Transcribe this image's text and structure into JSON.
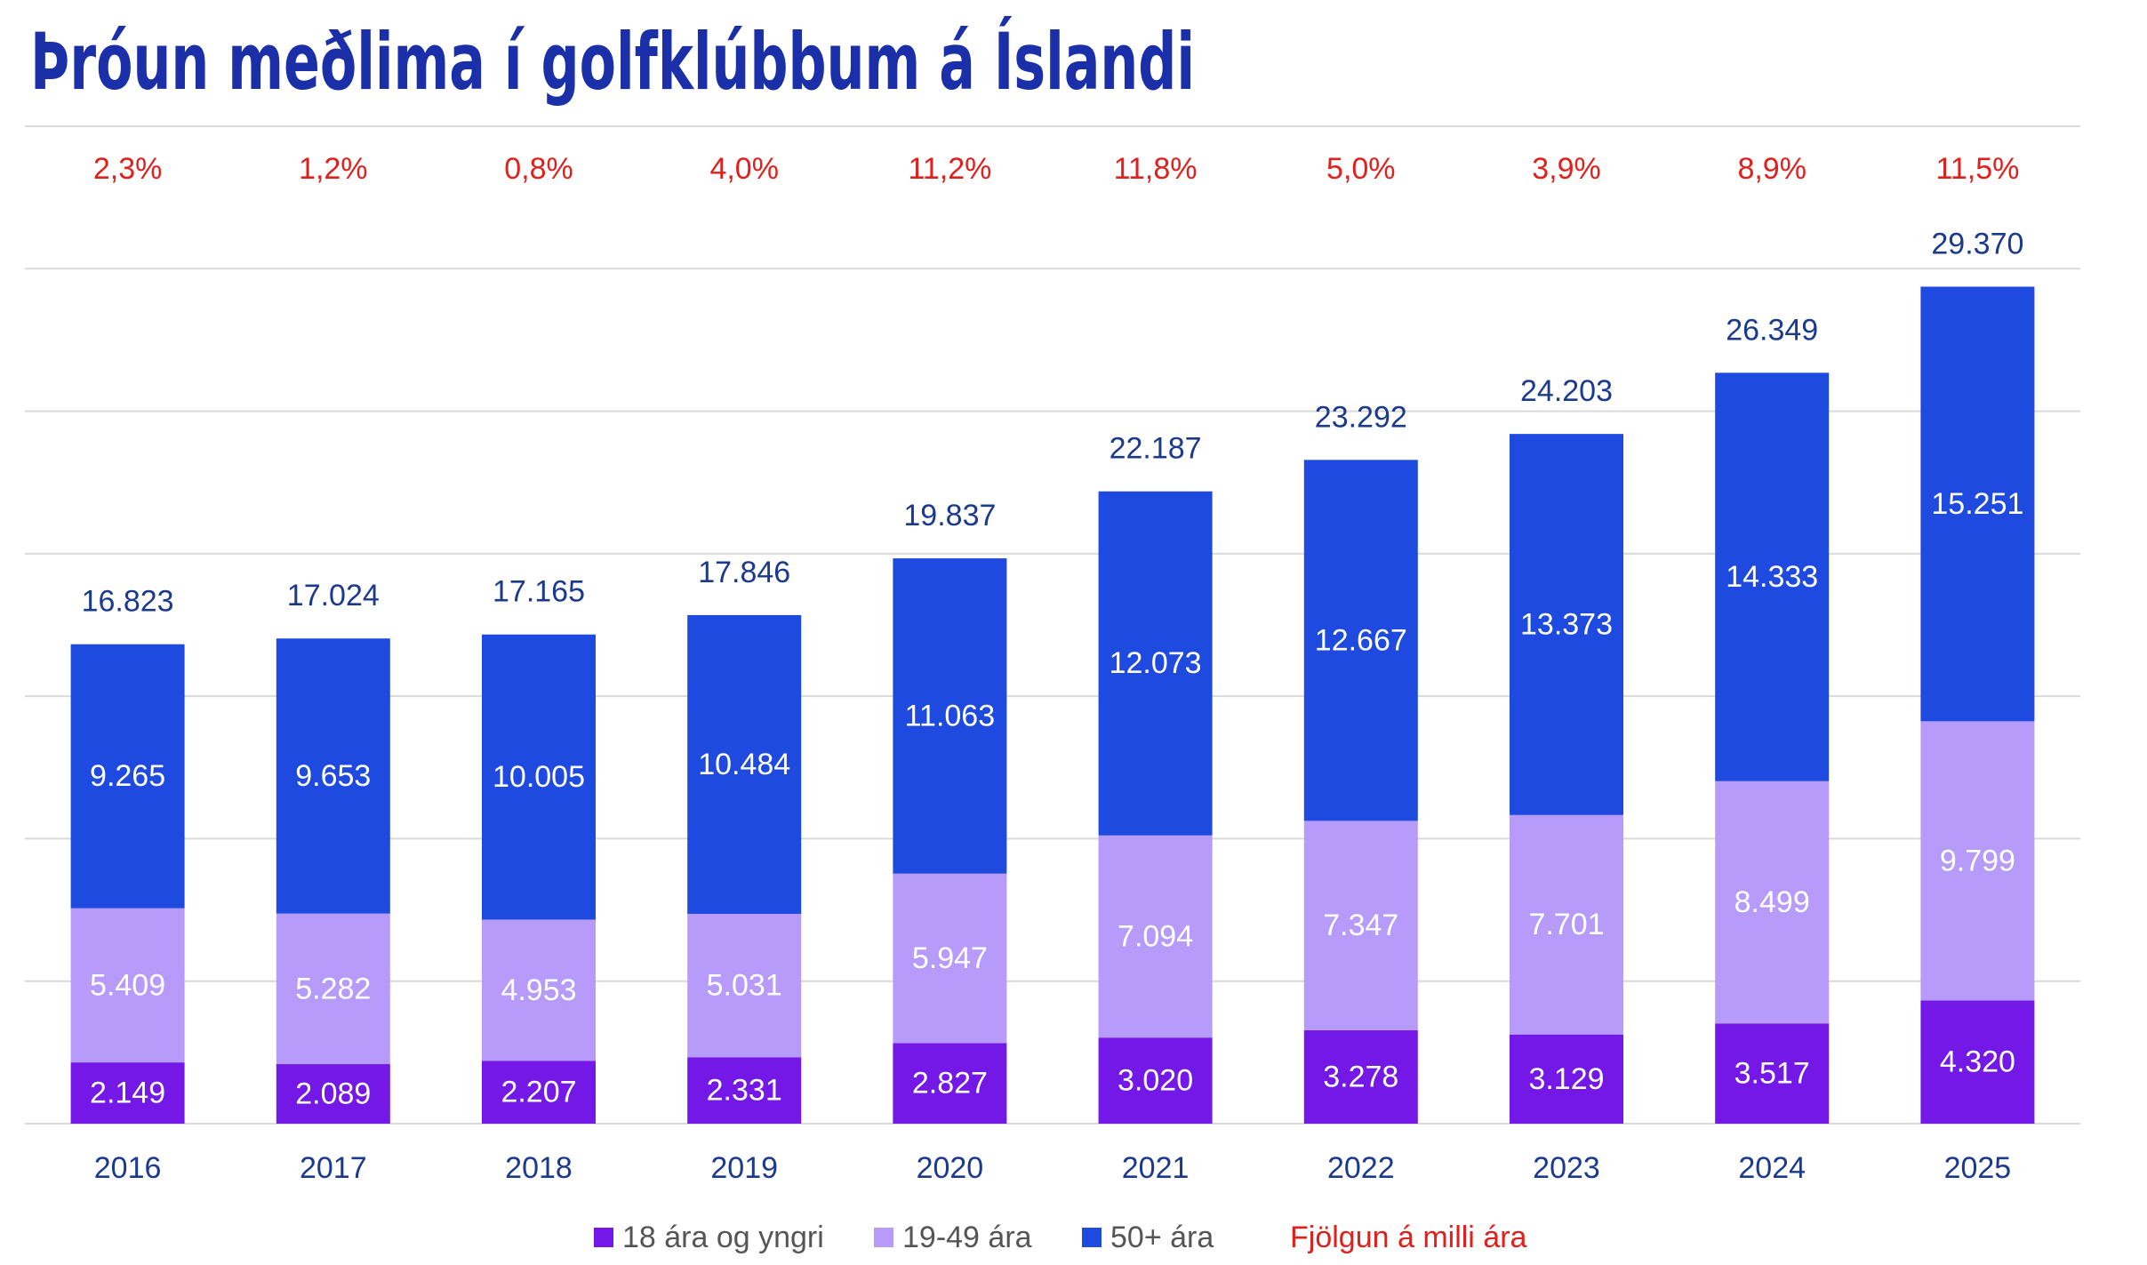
{
  "chart_data": {
    "type": "stacked-bar",
    "title": "Þróun meðlima í golfklúbbum á Íslandi",
    "categories": [
      "2016",
      "2017",
      "2018",
      "2019",
      "2020",
      "2021",
      "2022",
      "2023",
      "2024",
      "2025"
    ],
    "series": [
      {
        "name": "18 ára og yngri",
        "color": "#7318e6",
        "values": [
          2149,
          2089,
          2207,
          2331,
          2827,
          3020,
          3278,
          3129,
          3517,
          4320
        ],
        "value_labels": [
          "2.149",
          "2.089",
          "2.207",
          "2.331",
          "2.827",
          "3.020",
          "3.278",
          "3.129",
          "3.517",
          "4.320"
        ]
      },
      {
        "name": "19-49 ára",
        "color": "#b69bfa",
        "values": [
          5409,
          5282,
          4953,
          5031,
          5947,
          7094,
          7347,
          7701,
          8499,
          9799
        ],
        "value_labels": [
          "5.409",
          "5.282",
          "4.953",
          "5.031",
          "5.947",
          "7.094",
          "7.347",
          "7.701",
          "8.499",
          "9.799"
        ]
      },
      {
        "name": "50+ ára",
        "color": "#1f4ae0",
        "values": [
          9265,
          9653,
          10005,
          10484,
          11063,
          12073,
          12667,
          13373,
          14333,
          15251
        ],
        "value_labels": [
          "9.265",
          "9.653",
          "10.005",
          "10.484",
          "11.063",
          "12.073",
          "12.667",
          "13.373",
          "14.333",
          "15.251"
        ]
      }
    ],
    "totals": {
      "values": [
        16823,
        17024,
        17165,
        17846,
        19837,
        22187,
        23292,
        24203,
        26349,
        29370
      ],
      "value_labels": [
        "16.823",
        "17.024",
        "17.165",
        "17.846",
        "19.837",
        "22.187",
        "23.292",
        "24.203",
        "26.349",
        "29.370"
      ]
    },
    "growth": {
      "name": "Fjölgun á milli ára",
      "color": "#e0201c",
      "values": [
        2.3,
        1.2,
        0.8,
        4.0,
        11.2,
        11.8,
        5.0,
        3.9,
        8.9,
        11.5
      ],
      "value_labels": [
        "2,3%",
        "1,2%",
        "0,8%",
        "4,0%",
        "11,2%",
        "11,8%",
        "5,0%",
        "3,9%",
        "8,9%",
        "11,5%"
      ]
    },
    "ylim": [
      0,
      35000
    ],
    "yticks": [
      0,
      5000,
      10000,
      15000,
      20000,
      25000,
      30000,
      35000
    ],
    "grid": true
  }
}
